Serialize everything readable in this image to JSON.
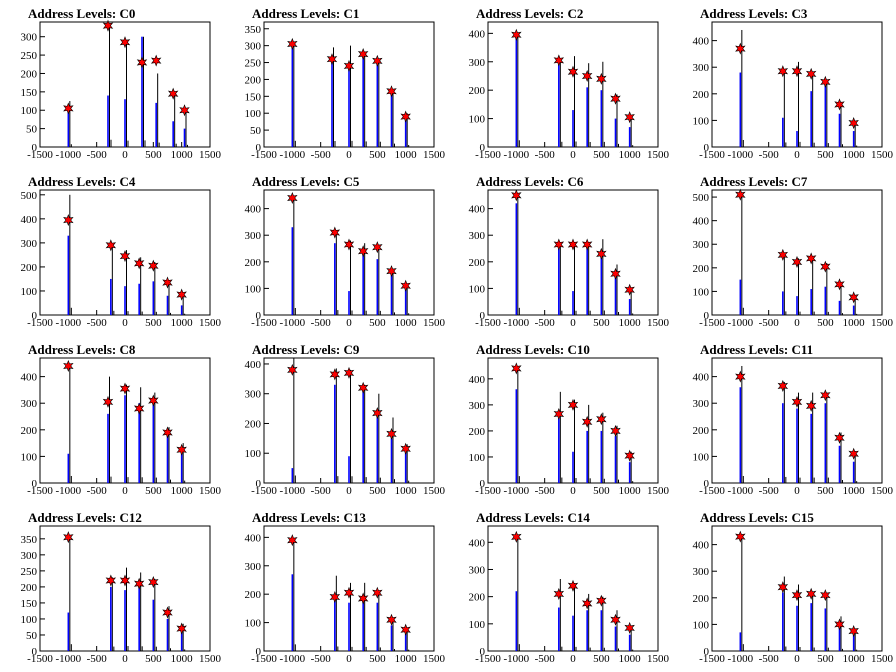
{
  "chart_data": [
    {
      "type": "bar",
      "title": "Address Levels: C0",
      "xlim": [
        -1500,
        1500
      ],
      "ylim": [
        0,
        340
      ],
      "yticks": [
        0,
        50,
        100,
        150,
        200,
        250,
        300
      ],
      "xticks": [
        -1500,
        -1000,
        -500,
        0,
        500,
        1000,
        1500
      ],
      "xticklabels": [
        "-1500",
        "-1000",
        "-500",
        "0",
        "500",
        "1000",
        "1500"
      ],
      "peaks": [
        -1000,
        -300,
        0,
        300,
        550,
        850,
        1050
      ],
      "blue": [
        100,
        140,
        130,
        300,
        120,
        70,
        50
      ],
      "black": [
        125,
        330,
        290,
        300,
        200,
        150,
        95
      ],
      "markers": [
        105,
        330,
        285,
        230,
        235,
        145,
        100
      ]
    },
    {
      "type": "bar",
      "title": "Address Levels: C1",
      "xlim": [
        -1500,
        1500
      ],
      "ylim": [
        0,
        370
      ],
      "yticks": [
        0,
        50,
        100,
        150,
        200,
        250,
        300,
        350
      ],
      "xticks": [
        -1500,
        -1000,
        -500,
        0,
        500,
        1000,
        1500
      ],
      "xticklabels": [
        "-1500",
        "-1000",
        "-500",
        "0",
        "500",
        "1000",
        "1500"
      ],
      "peaks": [
        -1000,
        -300,
        0,
        250,
        500,
        750,
        1000
      ],
      "blue": [
        300,
        250,
        230,
        270,
        250,
        160,
        80
      ],
      "black": [
        305,
        295,
        300,
        275,
        260,
        165,
        100
      ],
      "markers": [
        305,
        260,
        240,
        275,
        255,
        165,
        90
      ]
    },
    {
      "type": "bar",
      "title": "Address Levels: C2",
      "xlim": [
        -1500,
        1500
      ],
      "ylim": [
        0,
        440
      ],
      "yticks": [
        0,
        100,
        200,
        300,
        400
      ],
      "xticks": [
        -1500,
        -1000,
        -500,
        0,
        500,
        1000,
        1500
      ],
      "xticklabels": [
        "-1500",
        "-1000",
        "-500",
        "0",
        "500",
        "1000",
        "1500"
      ],
      "peaks": [
        -1000,
        -250,
        0,
        250,
        500,
        750,
        1000
      ],
      "blue": [
        395,
        300,
        130,
        210,
        200,
        100,
        70
      ],
      "black": [
        395,
        305,
        320,
        295,
        300,
        185,
        110
      ],
      "markers": [
        395,
        305,
        265,
        250,
        240,
        170,
        105
      ]
    },
    {
      "type": "bar",
      "title": "Address Levels: C3",
      "xlim": [
        -1500,
        1500
      ],
      "ylim": [
        0,
        470
      ],
      "yticks": [
        0,
        100,
        200,
        300,
        400
      ],
      "xticks": [
        -1500,
        -1000,
        -500,
        0,
        500,
        1000,
        1500
      ],
      "xticklabels": [
        "-1500",
        "-1000",
        "-500",
        "0",
        "500",
        "1000",
        "1500"
      ],
      "peaks": [
        -1000,
        -250,
        0,
        250,
        500,
        750,
        1000
      ],
      "blue": [
        280,
        110,
        60,
        210,
        230,
        125,
        60
      ],
      "black": [
        440,
        285,
        320,
        270,
        245,
        170,
        90
      ],
      "markers": [
        370,
        285,
        285,
        275,
        245,
        160,
        90
      ]
    },
    {
      "type": "bar",
      "title": "Address Levels: C4",
      "xlim": [
        -1500,
        1500
      ],
      "ylim": [
        0,
        520
      ],
      "yticks": [
        0,
        100,
        200,
        300,
        400,
        500
      ],
      "xticks": [
        -1500,
        -1000,
        -500,
        0,
        500,
        1000,
        1500
      ],
      "xticklabels": [
        "-1500",
        "-1000",
        "-500",
        "0",
        "500",
        "1000",
        "1500"
      ],
      "peaks": [
        -1000,
        -250,
        0,
        250,
        500,
        750,
        1000
      ],
      "blue": [
        330,
        150,
        120,
        130,
        140,
        80,
        40
      ],
      "black": [
        500,
        290,
        270,
        240,
        220,
        145,
        90
      ],
      "markers": [
        395,
        290,
        245,
        215,
        205,
        135,
        85
      ]
    },
    {
      "type": "bar",
      "title": "Address Levels: C5",
      "xlim": [
        -1500,
        1500
      ],
      "ylim": [
        0,
        470
      ],
      "yticks": [
        0,
        100,
        200,
        300,
        400
      ],
      "xticks": [
        -1500,
        -1000,
        -500,
        0,
        500,
        1000,
        1500
      ],
      "xticklabels": [
        "-1500",
        "-1000",
        "-500",
        "0",
        "500",
        "1000",
        "1500"
      ],
      "peaks": [
        -1000,
        -250,
        0,
        250,
        500,
        750,
        1000
      ],
      "blue": [
        330,
        270,
        90,
        230,
        210,
        150,
        100
      ],
      "black": [
        440,
        310,
        280,
        270,
        260,
        165,
        110
      ],
      "markers": [
        440,
        310,
        265,
        240,
        255,
        165,
        110
      ]
    },
    {
      "type": "bar",
      "title": "Address Levels: C6",
      "xlim": [
        -1500,
        1500
      ],
      "ylim": [
        0,
        470
      ],
      "yticks": [
        0,
        100,
        200,
        300,
        400
      ],
      "xticks": [
        -1500,
        -1000,
        -500,
        0,
        500,
        1000,
        1500
      ],
      "xticklabels": [
        "-1500",
        "-1000",
        "-500",
        "0",
        "500",
        "1000",
        "1500"
      ],
      "peaks": [
        -1000,
        -250,
        0,
        250,
        500,
        750,
        1000
      ],
      "blue": [
        420,
        250,
        90,
        250,
        220,
        140,
        60
      ],
      "black": [
        450,
        270,
        270,
        270,
        285,
        190,
        100
      ],
      "markers": [
        450,
        265,
        265,
        265,
        230,
        155,
        95
      ]
    },
    {
      "type": "bar",
      "title": "Address Levels: C7",
      "xlim": [
        -1500,
        1500
      ],
      "ylim": [
        0,
        530
      ],
      "yticks": [
        0,
        100,
        200,
        300,
        400,
        500
      ],
      "xticks": [
        -1500,
        -1000,
        -500,
        0,
        500,
        1000,
        1500
      ],
      "xticklabels": [
        "-1500",
        "-1000",
        "-500",
        "0",
        "500",
        "1000",
        "1500"
      ],
      "peaks": [
        -1000,
        -250,
        0,
        250,
        500,
        750,
        1000
      ],
      "blue": [
        150,
        100,
        80,
        110,
        120,
        60,
        40
      ],
      "black": [
        510,
        255,
        240,
        240,
        220,
        135,
        80
      ],
      "markers": [
        510,
        255,
        225,
        240,
        205,
        130,
        75
      ]
    },
    {
      "type": "bar",
      "title": "Address Levels: C8",
      "xlim": [
        -1500,
        1500
      ],
      "ylim": [
        0,
        470
      ],
      "yticks": [
        0,
        100,
        200,
        300,
        400
      ],
      "xticks": [
        -1500,
        -1000,
        -500,
        0,
        500,
        1000,
        1500
      ],
      "xticklabels": [
        "-1500",
        "-1000",
        "-500",
        "0",
        "500",
        "1000",
        "1500"
      ],
      "peaks": [
        -1000,
        -300,
        0,
        250,
        500,
        750,
        1000
      ],
      "blue": [
        110,
        260,
        330,
        300,
        310,
        180,
        130
      ],
      "black": [
        440,
        400,
        370,
        360,
        340,
        210,
        150
      ],
      "markers": [
        440,
        305,
        355,
        280,
        310,
        190,
        125
      ]
    },
    {
      "type": "bar",
      "title": "Address Levels: C9",
      "xlim": [
        -1500,
        1500
      ],
      "ylim": [
        0,
        420
      ],
      "yticks": [
        0,
        100,
        200,
        300,
        400
      ],
      "xticks": [
        -1500,
        -1000,
        -500,
        0,
        500,
        1000,
        1500
      ],
      "xticklabels": [
        "-1500",
        "-1000",
        "-500",
        "0",
        "500",
        "1000",
        "1500"
      ],
      "peaks": [
        -1000,
        -250,
        0,
        250,
        500,
        750,
        1000
      ],
      "blue": [
        50,
        330,
        90,
        310,
        220,
        150,
        110
      ],
      "black": [
        420,
        385,
        380,
        330,
        300,
        220,
        130
      ],
      "markers": [
        380,
        365,
        370,
        320,
        235,
        165,
        115
      ]
    },
    {
      "type": "bar",
      "title": "Address Levels: C10",
      "xlim": [
        -1500,
        1500
      ],
      "ylim": [
        0,
        480
      ],
      "yticks": [
        0,
        100,
        200,
        300,
        400
      ],
      "xticks": [
        -1500,
        -1000,
        -500,
        0,
        500,
        1000,
        1500
      ],
      "xticklabels": [
        "-1500",
        "-1000",
        "-500",
        "0",
        "500",
        "1000",
        "1500"
      ],
      "peaks": [
        -1000,
        -250,
        0,
        250,
        500,
        750,
        1000
      ],
      "blue": [
        360,
        250,
        120,
        200,
        200,
        180,
        80
      ],
      "black": [
        440,
        350,
        320,
        300,
        270,
        220,
        120
      ],
      "markers": [
        440,
        265,
        300,
        235,
        245,
        200,
        105
      ]
    },
    {
      "type": "bar",
      "title": "Address Levels: C11",
      "xlim": [
        -1500,
        1500
      ],
      "ylim": [
        0,
        470
      ],
      "yticks": [
        0,
        100,
        200,
        300,
        400
      ],
      "xticks": [
        -1500,
        -1000,
        -500,
        0,
        500,
        1000,
        1500
      ],
      "xticklabels": [
        "-1500",
        "-1000",
        "-500",
        "0",
        "500",
        "1000",
        "1500"
      ],
      "peaks": [
        -1000,
        -250,
        0,
        250,
        500,
        750,
        1000
      ],
      "blue": [
        360,
        300,
        280,
        260,
        300,
        140,
        80
      ],
      "black": [
        440,
        380,
        340,
        340,
        340,
        190,
        120
      ],
      "markers": [
        400,
        365,
        305,
        290,
        330,
        170,
        110
      ]
    },
    {
      "type": "bar",
      "title": "Address Levels: C12",
      "xlim": [
        -1500,
        1500
      ],
      "ylim": [
        0,
        390
      ],
      "yticks": [
        0,
        50,
        100,
        150,
        200,
        250,
        300,
        350
      ],
      "xticks": [
        -1500,
        -1000,
        -500,
        0,
        500,
        1000,
        1500
      ],
      "xticklabels": [
        "-1500",
        "-1000",
        "-500",
        "0",
        "500",
        "1000",
        "1500"
      ],
      "peaks": [
        -1000,
        -250,
        0,
        250,
        500,
        750,
        1000
      ],
      "blue": [
        120,
        200,
        190,
        200,
        160,
        100,
        60
      ],
      "black": [
        355,
        230,
        260,
        245,
        225,
        140,
        85
      ],
      "markers": [
        355,
        220,
        220,
        210,
        215,
        120,
        70
      ]
    },
    {
      "type": "bar",
      "title": "Address Levels: C13",
      "xlim": [
        -1500,
        1500
      ],
      "ylim": [
        0,
        440
      ],
      "yticks": [
        0,
        100,
        200,
        300,
        400
      ],
      "xticks": [
        -1500,
        -1000,
        -500,
        0,
        500,
        1000,
        1500
      ],
      "xticklabels": [
        "-1500",
        "-1000",
        "-500",
        "0",
        "500",
        "1000",
        "1500"
      ],
      "peaks": [
        -1000,
        -250,
        0,
        250,
        500,
        750,
        1000
      ],
      "blue": [
        270,
        180,
        170,
        180,
        170,
        90,
        60
      ],
      "black": [
        390,
        265,
        240,
        240,
        210,
        115,
        80
      ],
      "markers": [
        390,
        190,
        205,
        185,
        205,
        110,
        75
      ]
    },
    {
      "type": "bar",
      "title": "Address Levels: C14",
      "xlim": [
        -1500,
        1500
      ],
      "ylim": [
        0,
        460
      ],
      "yticks": [
        0,
        100,
        200,
        300,
        400
      ],
      "xticks": [
        -1500,
        -1000,
        -500,
        0,
        500,
        1000,
        1500
      ],
      "xticklabels": [
        "-1500",
        "-1000",
        "-500",
        "0",
        "500",
        "1000",
        "1500"
      ],
      "peaks": [
        -1000,
        -250,
        0,
        250,
        500,
        750,
        1000
      ],
      "blue": [
        220,
        160,
        130,
        150,
        150,
        90,
        60
      ],
      "black": [
        420,
        265,
        250,
        210,
        200,
        150,
        90
      ],
      "markers": [
        420,
        210,
        240,
        175,
        185,
        115,
        85
      ]
    },
    {
      "type": "bar",
      "title": "Address Levels: C15",
      "xlim": [
        -1500,
        1500
      ],
      "ylim": [
        0,
        470
      ],
      "yticks": [
        0,
        100,
        200,
        300,
        400
      ],
      "xticks": [
        -1500,
        -1000,
        -500,
        0,
        500,
        1000,
        1500
      ],
      "xticklabels": [
        "-1500",
        "-1000",
        "-500",
        "0",
        "500",
        "1000",
        "1500"
      ],
      "peaks": [
        -1000,
        -250,
        0,
        250,
        500,
        750,
        1000
      ],
      "blue": [
        70,
        220,
        170,
        180,
        160,
        90,
        60
      ],
      "black": [
        430,
        280,
        250,
        220,
        210,
        130,
        85
      ],
      "markers": [
        430,
        240,
        210,
        215,
        210,
        100,
        75
      ]
    }
  ],
  "colors": {
    "blue": "#0000ff",
    "black": "#000000",
    "marker_fill": "#ff0000",
    "marker_stroke": "#000000"
  }
}
